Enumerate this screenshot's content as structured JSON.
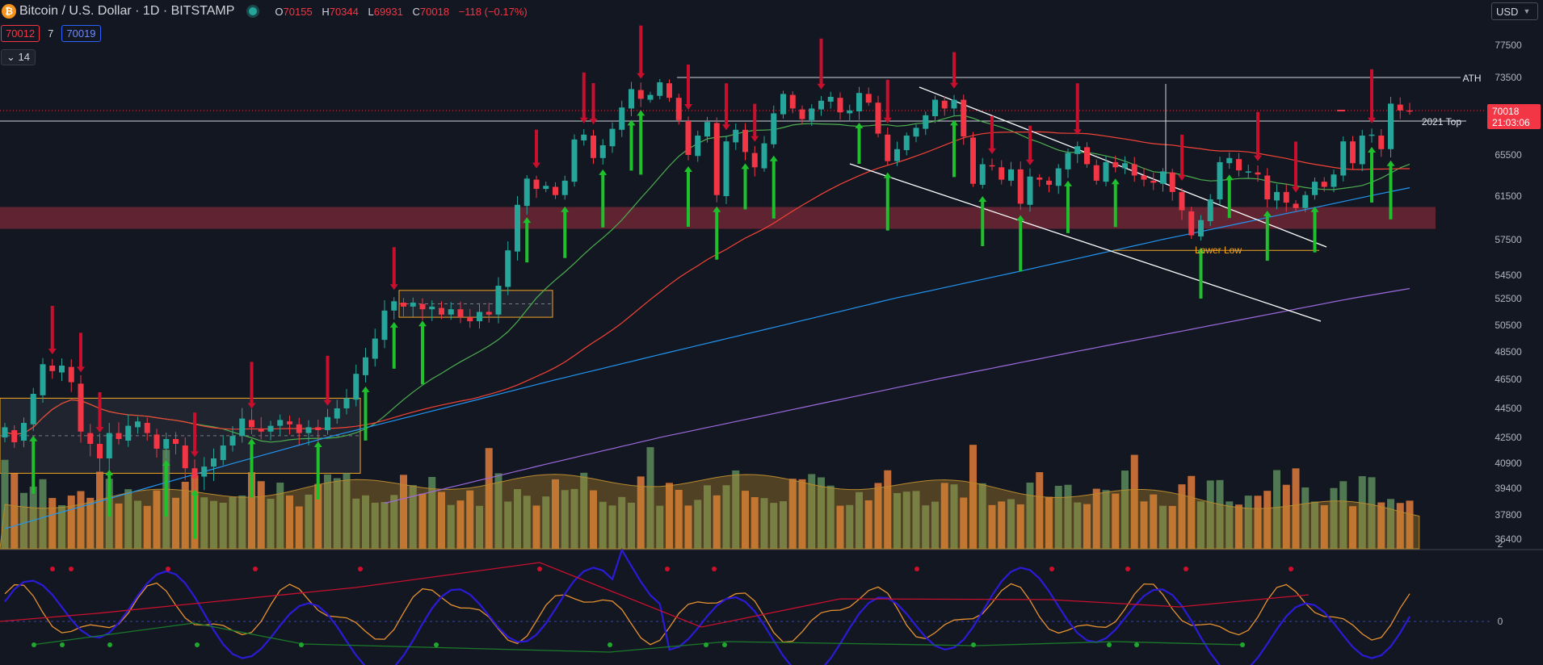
{
  "header": {
    "logo_glyph": "₿",
    "title": "Bitcoin / U.S. Dollar · 1D · BITSTAMP",
    "ohlc": [
      {
        "k": "O",
        "v": "70155"
      },
      {
        "k": "H",
        "v": "70344"
      },
      {
        "k": "L",
        "v": "69931"
      },
      {
        "k": "C",
        "v": "70018"
      }
    ],
    "change": "−118 (−0.17%)",
    "bid": "70012",
    "spread": "7",
    "ask": "70019",
    "indicators_count": "14",
    "currency": "USD"
  },
  "price_axis": {
    "ticks": [
      77500,
      73500,
      65500,
      61500,
      57500,
      54500,
      52500,
      50500,
      48500,
      46500,
      44500,
      42500,
      40900,
      39400,
      37800,
      36400
    ],
    "last_price": "70018",
    "countdown": "21:03:06",
    "labels": {
      "ath": "ATH",
      "top2021": "2021 Top"
    }
  },
  "annotations": {
    "lower_low": "Lower Low"
  },
  "oscillator_axis": {
    "ticks": [
      "2",
      "0"
    ]
  },
  "colors": {
    "bg": "#131722",
    "up": "#26a69a",
    "down": "#f23645",
    "ma_fast": "#4caf50",
    "ma_mid": "#f44336",
    "ma_slow": "#2196f3",
    "ma_long": "#9c6ade",
    "range_box": "#f5a623",
    "resistance_zone": "#7a2838",
    "osc_blue": "#2b1bd8",
    "osc_orange": "#e69130",
    "arrow_up": "#1fbf2e",
    "arrow_down": "#c8102e"
  },
  "chart_data": {
    "type": "candlestick",
    "symbol": "Bitcoin / U.S. Dollar",
    "interval": "1D",
    "candles_approx": [
      [
        42500,
        43200
      ],
      [
        43000,
        42200
      ],
      [
        42300,
        43500
      ],
      [
        43400,
        45500
      ],
      [
        45400,
        47600
      ],
      [
        47500,
        47100
      ],
      [
        47000,
        47500
      ],
      [
        47400,
        46300
      ],
      [
        46200,
        42900
      ],
      [
        42800,
        42100
      ],
      [
        42100,
        41200
      ],
      [
        41200,
        42800
      ],
      [
        42800,
        42400
      ],
      [
        42300,
        43300
      ],
      [
        43200,
        43600
      ],
      [
        43500,
        42800
      ],
      [
        42700,
        41800
      ],
      [
        41800,
        42400
      ],
      [
        42400,
        42100
      ],
      [
        42000,
        40600
      ],
      [
        40600,
        40000
      ],
      [
        40100,
        40700
      ],
      [
        40700,
        41200
      ],
      [
        41100,
        42000
      ],
      [
        42000,
        42600
      ],
      [
        42600,
        43800
      ],
      [
        43700,
        43200
      ],
      [
        43100,
        42900
      ],
      [
        42900,
        43300
      ],
      [
        43300,
        43700
      ],
      [
        43600,
        43400
      ],
      [
        43400,
        42800
      ],
      [
        42800,
        43200
      ],
      [
        43200,
        43000
      ],
      [
        43000,
        43900
      ],
      [
        43800,
        44500
      ],
      [
        44500,
        45200
      ],
      [
        45100,
        46900
      ],
      [
        46800,
        48100
      ],
      [
        48000,
        49500
      ],
      [
        49400,
        51600
      ],
      [
        51600,
        52300
      ],
      [
        52200,
        51900
      ],
      [
        51900,
        52200
      ],
      [
        52100,
        51700
      ],
      [
        51700,
        51900
      ],
      [
        51800,
        51300
      ],
      [
        51300,
        51700
      ],
      [
        51700,
        51100
      ],
      [
        51100,
        50800
      ],
      [
        50800,
        51500
      ],
      [
        51500,
        51300
      ],
      [
        51300,
        53600
      ],
      [
        53500,
        56600
      ],
      [
        56500,
        60700
      ],
      [
        60600,
        63200
      ],
      [
        63100,
        62200
      ],
      [
        62200,
        62500
      ],
      [
        62400,
        61600
      ],
      [
        61600,
        63000
      ],
      [
        62900,
        67100
      ],
      [
        67000,
        67600
      ],
      [
        67500,
        65200
      ],
      [
        65200,
        66500
      ],
      [
        66400,
        68200
      ],
      [
        68100,
        70400
      ],
      [
        70300,
        72300
      ],
      [
        72200,
        71300
      ],
      [
        71200,
        71700
      ],
      [
        71600,
        73000
      ],
      [
        72900,
        71400
      ],
      [
        71400,
        69100
      ],
      [
        69000,
        65500
      ],
      [
        65400,
        67500
      ],
      [
        67400,
        68900
      ],
      [
        68800,
        61600
      ],
      [
        61500,
        66900
      ],
      [
        66800,
        68100
      ],
      [
        68100,
        65800
      ],
      [
        65700,
        64300
      ],
      [
        64200,
        66700
      ],
      [
        66600,
        69800
      ],
      [
        69700,
        71800
      ],
      [
        71700,
        70300
      ],
      [
        70200,
        69200
      ],
      [
        69100,
        70300
      ],
      [
        70200,
        71100
      ],
      [
        71000,
        71500
      ],
      [
        71400,
        69900
      ],
      [
        69800,
        70100
      ],
      [
        70000,
        71900
      ],
      [
        71800,
        70900
      ],
      [
        70900,
        67700
      ],
      [
        67600,
        64900
      ],
      [
        64900,
        66100
      ],
      [
        66000,
        67500
      ],
      [
        67400,
        68300
      ],
      [
        68200,
        69600
      ],
      [
        69500,
        71200
      ],
      [
        71100,
        70300
      ],
      [
        70300,
        71200
      ],
      [
        71200,
        67400
      ],
      [
        67300,
        62700
      ],
      [
        62600,
        64600
      ],
      [
        64500,
        64400
      ],
      [
        64300,
        63100
      ],
      [
        63000,
        64100
      ],
      [
        64100,
        60800
      ],
      [
        60700,
        63400
      ],
      [
        63300,
        63100
      ],
      [
        63000,
        62600
      ],
      [
        62500,
        64200
      ],
      [
        64100,
        65700
      ],
      [
        65600,
        66400
      ],
      [
        66300,
        64600
      ],
      [
        64500,
        63000
      ],
      [
        62900,
        64800
      ],
      [
        64800,
        64300
      ],
      [
        64200,
        64700
      ],
      [
        64600,
        63500
      ],
      [
        63500,
        63100
      ],
      [
        63000,
        62800
      ],
      [
        62700,
        63900
      ],
      [
        63800,
        61900
      ],
      [
        61900,
        60200
      ],
      [
        60100,
        57900
      ],
      [
        57800,
        59300
      ],
      [
        59200,
        61200
      ],
      [
        61200,
        64800
      ],
      [
        64700,
        65200
      ],
      [
        65100,
        64000
      ],
      [
        63900,
        63900
      ],
      [
        63800,
        63600
      ],
      [
        63500,
        61200
      ],
      [
        61100,
        61900
      ],
      [
        61900,
        60900
      ],
      [
        60800,
        60400
      ],
      [
        60400,
        61600
      ],
      [
        61600,
        62900
      ],
      [
        62900,
        62400
      ],
      [
        62400,
        63600
      ],
      [
        63500,
        66900
      ],
      [
        66900,
        64700
      ],
      [
        64600,
        67500
      ],
      [
        67500,
        67600
      ],
      [
        67500,
        66100
      ],
      [
        66100,
        70800
      ],
      [
        70700,
        70100
      ],
      [
        70100,
        70000
      ]
    ],
    "price_ylim": [
      36400,
      79500
    ],
    "resistance_zone": [
      58500,
      60500
    ],
    "range_boxes": [
      [
        40300,
        45200
      ],
      [
        51100,
        53200
      ]
    ],
    "horizontal_levels": {
      "ATH": 73500,
      "2021 Top": 69000
    },
    "oscillator_ylim": [
      -1.2,
      2.4
    ]
  }
}
